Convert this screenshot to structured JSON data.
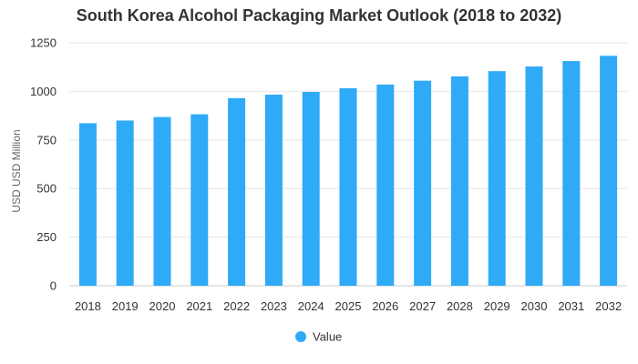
{
  "chart_data": {
    "type": "bar",
    "title": "South Korea Alcohol Packaging Market Outlook (2018 to 2032)",
    "xlabel": "",
    "ylabel": "USD USD Million",
    "categories": [
      "2018",
      "2019",
      "2020",
      "2021",
      "2022",
      "2023",
      "2024",
      "2025",
      "2026",
      "2027",
      "2028",
      "2029",
      "2030",
      "2031",
      "2032"
    ],
    "series": [
      {
        "name": "Value",
        "color": "#2eaaf7",
        "values": [
          836,
          850,
          868,
          882,
          965,
          983,
          997,
          1016,
          1035,
          1055,
          1077,
          1104,
          1128,
          1156,
          1183
        ]
      }
    ],
    "ylim": [
      0,
      1250
    ],
    "yticks": [
      0,
      250,
      500,
      750,
      1000,
      1250
    ],
    "grid": true,
    "legend": "bottom-center"
  }
}
